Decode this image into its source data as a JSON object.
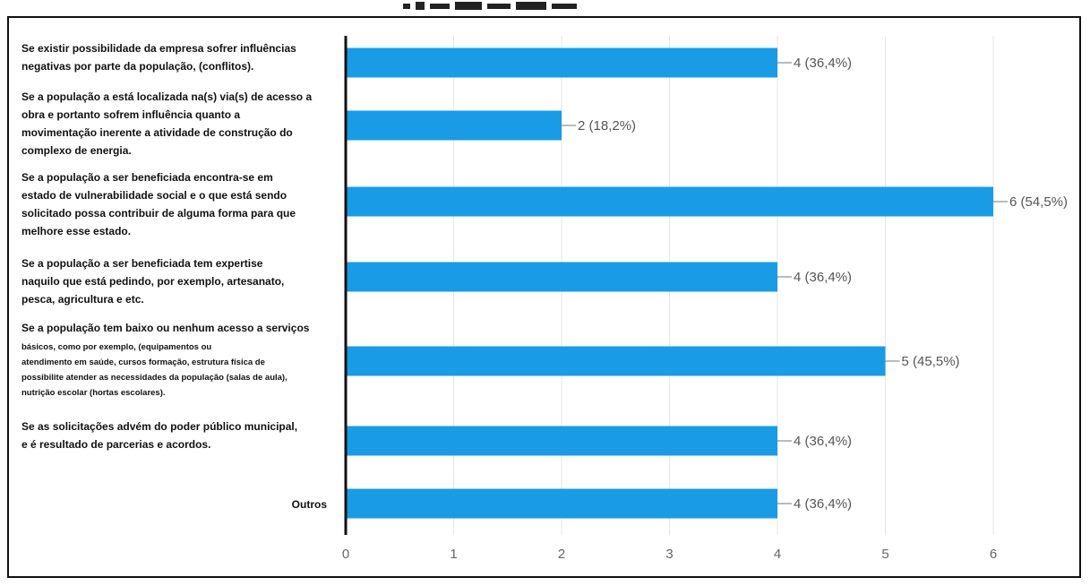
{
  "chart_data": {
    "type": "bar",
    "orientation": "horizontal",
    "categories": [
      [
        "Se existir possibilidade da empresa sofrer influências",
        "negativas por parte da população, (conflitos)."
      ],
      [
        "Se a população a está localizada na(s) via(s) de acesso a",
        "obra e portanto sofrem influência quanto a",
        "movimentação inerente a atividade de construção do",
        "complexo de energia."
      ],
      [
        "Se a população a ser beneficiada encontra-se em",
        "estado de vulnerabilidade social e o que está sendo",
        "solicitado possa contribuir de alguma forma para que",
        "melhore esse estado."
      ],
      [
        "Se a população a ser beneficiada tem expertise",
        "naquilo que está pedindo, por exemplo, artesanato,",
        "pesca, agricultura e etc."
      ],
      [
        "Se a população tem baixo ou nenhum acesso a serviços",
        "básicos, como por exemplo,  (equipamentos ou",
        "atendimento em saúde, cursos formação, estrutura física de",
        "possibilite atender as necessidades da população (salas de aula),",
        "nutrição escolar (hortas escolares)."
      ],
      [
        "Se as solicitações advém do poder público municipal,",
        "e é resultado de parcerias e acordos."
      ],
      [
        "Outros"
      ]
    ],
    "values": [
      4,
      2,
      6,
      4,
      5,
      4,
      4
    ],
    "data_labels": [
      "4 (36,4%)",
      "2 (18,2%)",
      "6 (54,5%)",
      "4 (36,4%)",
      "5 (45,5%)",
      "4 (36,4%)",
      "4 (36,4%)"
    ],
    "x_ticks": [
      "0",
      "1",
      "2",
      "3",
      "4",
      "5",
      "6"
    ],
    "xlim": [
      0,
      6
    ],
    "grid": true,
    "bar_color": "#1a9be6",
    "title": ""
  }
}
